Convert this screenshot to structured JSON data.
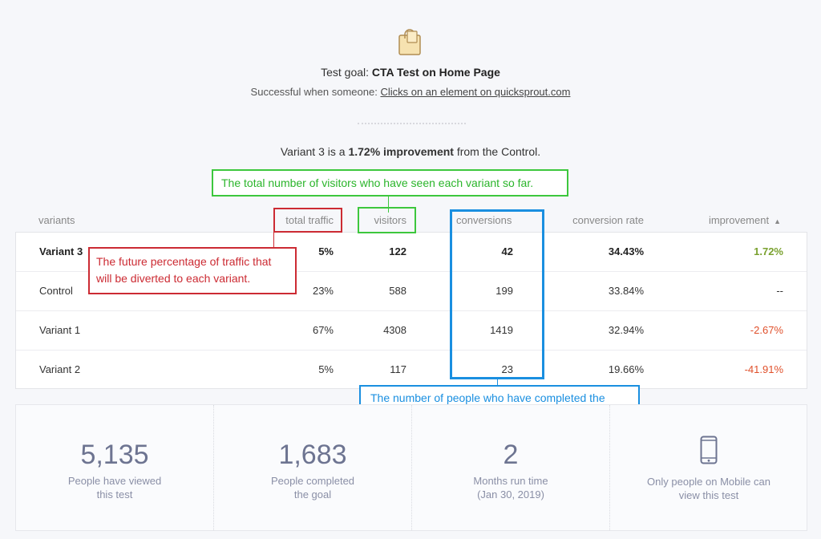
{
  "header": {
    "goal_prefix": "Test goal:",
    "goal_name": "CTA Test on Home Page",
    "success_prefix": "Successful when someone:",
    "success_link": "Clicks on an element on quicksprout.com"
  },
  "summary": {
    "variant": "Variant 3",
    "is_a": "is a",
    "improvement": "1.72% improvement",
    "suffix": "from the Control."
  },
  "columns": {
    "variants": "variants",
    "total_traffic": "total traffic",
    "visitors": "visitors",
    "conversions": "conversions",
    "conversion_rate": "conversion rate",
    "improvement": "improvement",
    "sort_icon": "sort-ascending-icon"
  },
  "rows": [
    {
      "name": "Variant 3",
      "traffic": "5%",
      "visitors": "122",
      "conversions": "42",
      "rate": "34.43%",
      "improvement": "1.72%"
    },
    {
      "name": "Control",
      "traffic": "23%",
      "visitors": "588",
      "conversions": "199",
      "rate": "33.84%",
      "improvement": "--"
    },
    {
      "name": "Variant 1",
      "traffic": "67%",
      "visitors": "4308",
      "conversions": "1419",
      "rate": "32.94%",
      "improvement": "-2.67%"
    },
    {
      "name": "Variant 2",
      "traffic": "5%",
      "visitors": "117",
      "conversions": "23",
      "rate": "19.66%",
      "improvement": "-41.91%"
    }
  ],
  "callouts": {
    "visitors": "The total number of visitors who have seen each variant so far.",
    "traffic": "The future percentage of traffic that will be diverted to each variant.",
    "conversions": "The number of people who have completed the action specified in your goal."
  },
  "stats": [
    {
      "value": "5,135",
      "label_1": "People have viewed",
      "label_2": "this test"
    },
    {
      "value": "1,683",
      "label_1": "People completed",
      "label_2": "the goal"
    },
    {
      "value": "2",
      "label_1": "Months run time",
      "label_2": "(Jan 30, 2019)"
    },
    {
      "icon": "mobile-phone-icon",
      "label_1": "Only people on Mobile can",
      "label_2": "view this test"
    }
  ],
  "colors": {
    "positive": "#7aa12f",
    "negative": "#e0502b",
    "callout_green": "#3dc73d",
    "callout_red": "#cc2b33",
    "callout_blue": "#1a8fe0"
  }
}
